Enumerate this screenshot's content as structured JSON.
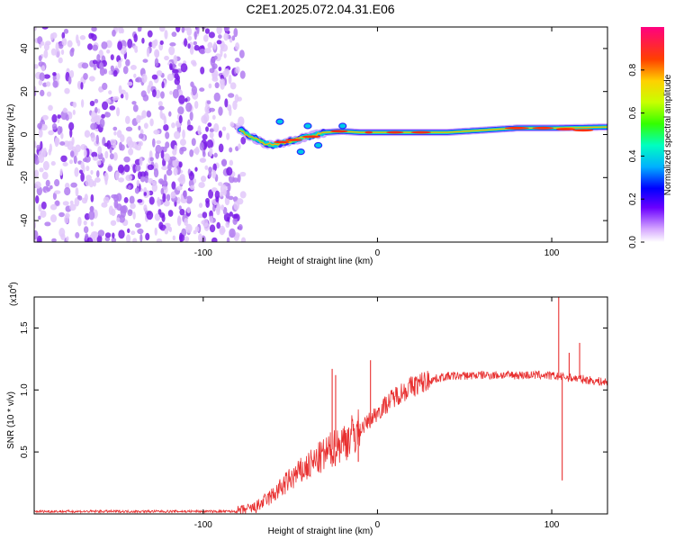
{
  "title": "C2E1.2025.072.04.31.E06",
  "chart_data": [
    {
      "type": "heatmap",
      "name": "spectrogram",
      "xlabel": "Height of straight line (km)",
      "ylabel": "Frequency (Hz)",
      "xlim": [
        -197,
        132
      ],
      "ylim": [
        -50,
        50
      ],
      "xticks": [
        -100,
        0,
        100
      ],
      "yticks": [
        -40,
        -20,
        0,
        20,
        40
      ],
      "noise_region_x": [
        -197,
        -80
      ],
      "signal_band": [
        {
          "x": -79,
          "f": 2.5
        },
        {
          "x": -75,
          "f": 0
        },
        {
          "x": -70,
          "f": -2
        },
        {
          "x": -65,
          "f": -4
        },
        {
          "x": -60,
          "f": -5
        },
        {
          "x": -55,
          "f": -4
        },
        {
          "x": -50,
          "f": -3
        },
        {
          "x": -45,
          "f": -2
        },
        {
          "x": -40,
          "f": -1
        },
        {
          "x": -35,
          "f": 0
        },
        {
          "x": -30,
          "f": 1
        },
        {
          "x": -20,
          "f": 1.5
        },
        {
          "x": -10,
          "f": 1
        },
        {
          "x": 0,
          "f": 1
        },
        {
          "x": 20,
          "f": 1
        },
        {
          "x": 40,
          "f": 1
        },
        {
          "x": 60,
          "f": 2
        },
        {
          "x": 80,
          "f": 3
        },
        {
          "x": 100,
          "f": 3
        },
        {
          "x": 132,
          "f": 3.5
        }
      ],
      "colorbar": {
        "label": "Normalized spectral amplitude",
        "range": [
          0,
          1
        ],
        "ticks": [
          "0.0",
          "0.2",
          "0.4",
          "0.6",
          "0.8"
        ],
        "tick_values": [
          0,
          0.2,
          0.4,
          0.6,
          0.8
        ]
      }
    },
    {
      "type": "line",
      "name": "snr",
      "xlabel": "Height of straight line (km)",
      "ylabel": "SNR (10 * v/v)",
      "y_multiplier": "(x10",
      "y_multiplier_exp": "4",
      "y_multiplier_close": ")",
      "xlim": [
        -197,
        132
      ],
      "ylim": [
        0,
        1.75
      ],
      "xticks": [
        -100,
        0,
        100
      ],
      "yticks": [
        "0.5",
        "1.0",
        "1.5"
      ],
      "ytick_values": [
        0.5,
        1.0,
        1.5
      ],
      "color": "#e83030",
      "envelope": [
        {
          "x": -197,
          "y": 0.02
        },
        {
          "x": -80,
          "y": 0.02
        },
        {
          "x": -70,
          "y": 0.05
        },
        {
          "x": -60,
          "y": 0.15
        },
        {
          "x": -50,
          "y": 0.28
        },
        {
          "x": -40,
          "y": 0.38
        },
        {
          "x": -30,
          "y": 0.48
        },
        {
          "x": -20,
          "y": 0.58
        },
        {
          "x": -10,
          "y": 0.68
        },
        {
          "x": 0,
          "y": 0.82
        },
        {
          "x": 10,
          "y": 0.95
        },
        {
          "x": 20,
          "y": 1.03
        },
        {
          "x": 30,
          "y": 1.08
        },
        {
          "x": 40,
          "y": 1.11
        },
        {
          "x": 60,
          "y": 1.12
        },
        {
          "x": 80,
          "y": 1.12
        },
        {
          "x": 95,
          "y": 1.12
        },
        {
          "x": 110,
          "y": 1.1
        },
        {
          "x": 132,
          "y": 1.06
        }
      ],
      "spikes": [
        {
          "x": -26,
          "y": 1.17
        },
        {
          "x": -24,
          "y": 1.12
        },
        {
          "x": -4,
          "y": 1.24
        },
        {
          "x": -11,
          "y": 0.42
        },
        {
          "x": 104,
          "y": 1.75
        },
        {
          "x": 106,
          "y": 0.27
        },
        {
          "x": 116,
          "y": 1.38
        },
        {
          "x": 110,
          "y": 1.3
        }
      ]
    }
  ]
}
